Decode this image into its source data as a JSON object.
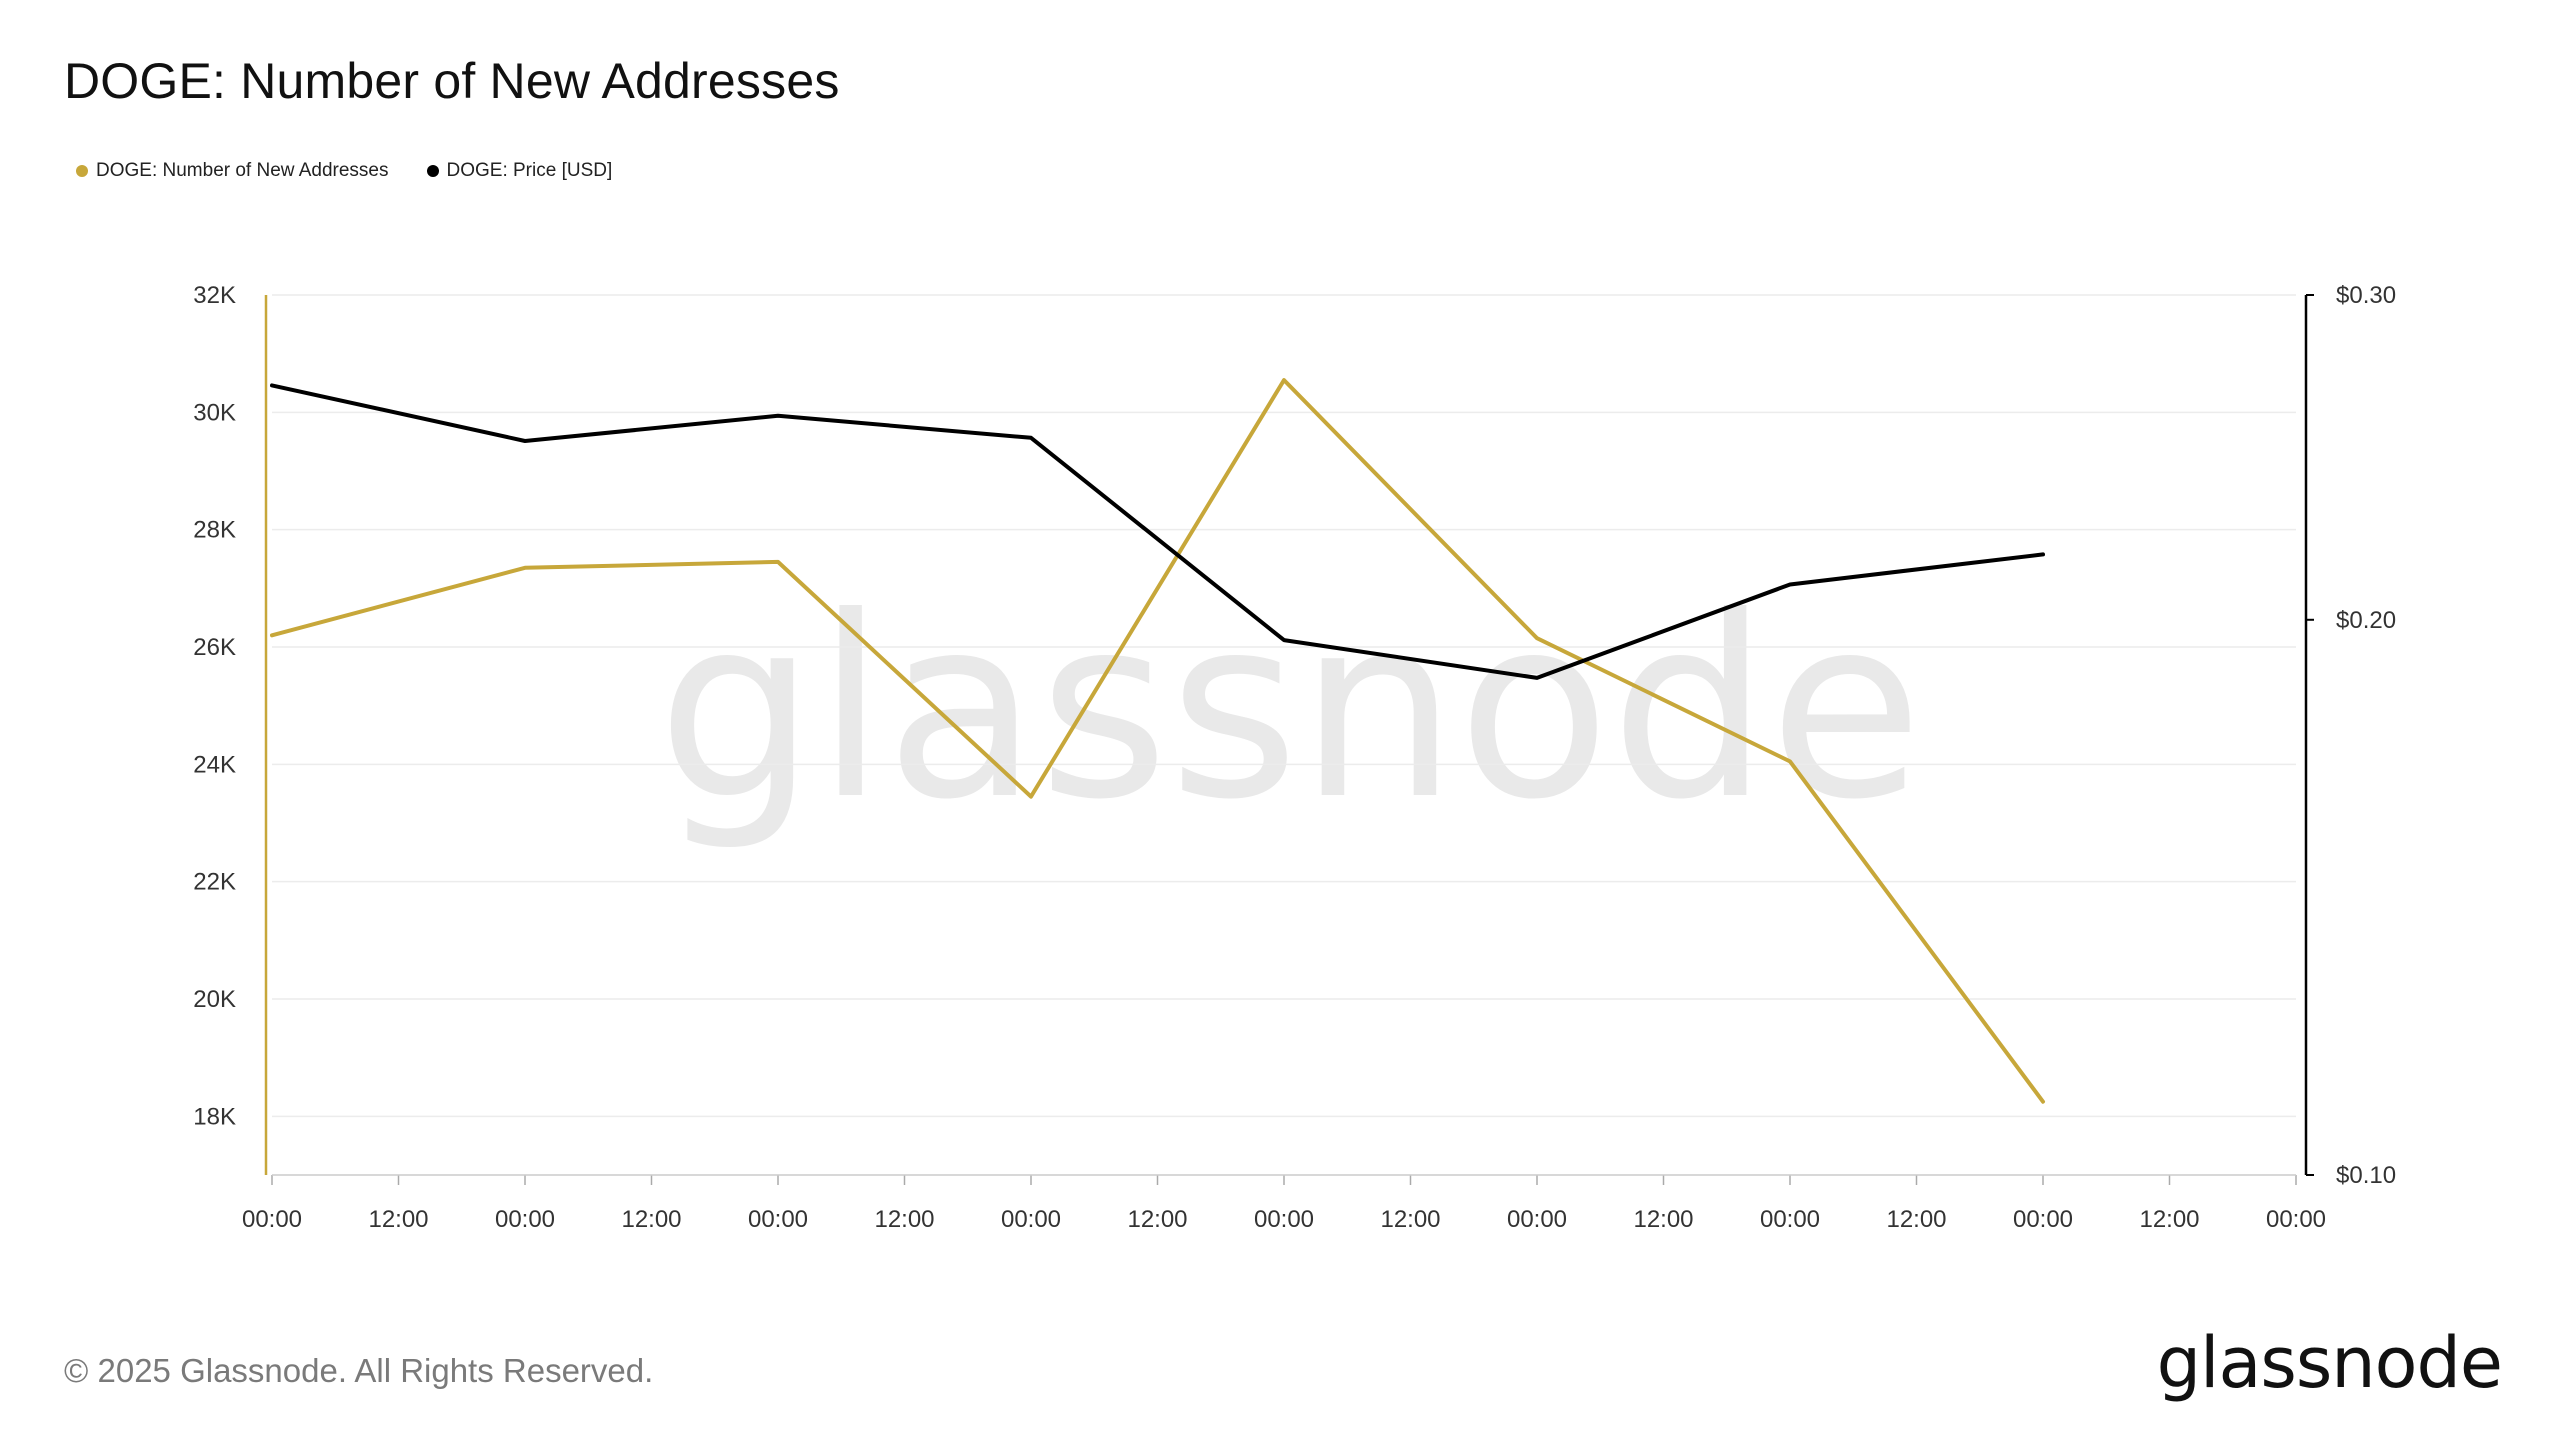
{
  "header": {
    "title": "DOGE: Number of New Addresses"
  },
  "legend": [
    {
      "label": "DOGE: Number of New Addresses",
      "color": "#c7a73a"
    },
    {
      "label": "DOGE: Price [USD]",
      "color": "#000000"
    }
  ],
  "watermark": "glassnode",
  "footer": {
    "copyright": "© 2025 Glassnode. All Rights Reserved.",
    "logo": "glassnode"
  },
  "chart_data": {
    "type": "line",
    "title": "DOGE: Number of New Addresses",
    "x_ticks": [
      "00:00",
      "12:00",
      "00:00",
      "12:00",
      "00:00",
      "12:00",
      "00:00",
      "12:00",
      "00:00",
      "12:00",
      "00:00",
      "12:00",
      "00:00",
      "12:00",
      "00:00",
      "12:00",
      "00:00"
    ],
    "x_index": [
      0,
      2,
      4,
      6,
      8,
      10,
      12,
      14
    ],
    "y_left": {
      "ticks": [
        18000,
        20000,
        22000,
        24000,
        26000,
        28000,
        30000,
        32000
      ],
      "tick_labels": [
        "18K",
        "20K",
        "22K",
        "24K",
        "26K",
        "28K",
        "30K",
        "32K"
      ],
      "range": [
        17000,
        32000
      ]
    },
    "y_right": {
      "scale": "log",
      "ticks": [
        0.1,
        0.2,
        0.3
      ],
      "tick_labels": [
        "$0.10",
        "$0.20",
        "$0.30"
      ],
      "range": [
        0.1,
        0.3
      ]
    },
    "grid": true,
    "legend_position": "top-left",
    "series": [
      {
        "name": "DOGE: Number of New Addresses",
        "axis": "left",
        "color": "#c7a73a",
        "values": [
          26200,
          27350,
          27450,
          23450,
          30550,
          26150,
          24050,
          18250
        ]
      },
      {
        "name": "DOGE: Price [USD]",
        "axis": "right",
        "color": "#000000",
        "values": [
          0.268,
          0.25,
          0.258,
          0.251,
          0.195,
          0.186,
          0.209,
          0.217
        ]
      }
    ]
  }
}
